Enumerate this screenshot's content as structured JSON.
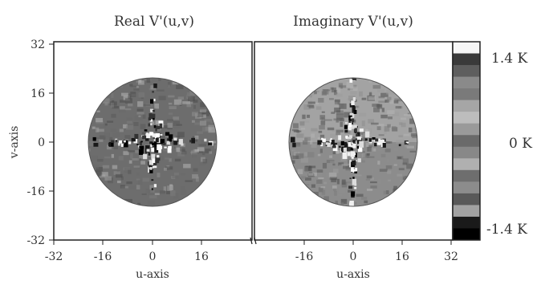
{
  "panels": [
    {
      "title": "Real V'(u,v)",
      "xlabel": "u-axis",
      "ylabel": "v-axis",
      "x_ticks": [
        "-32",
        "-16",
        "0",
        "16"
      ],
      "y_ticks": [
        "32",
        "16",
        "0",
        "-16",
        "-32"
      ]
    },
    {
      "title": "Imaginary V'(u,v)",
      "xlabel": "u-axis",
      "x_ticks": [
        "-16",
        "0",
        "16",
        "32"
      ]
    }
  ],
  "colorbar": {
    "labels": [
      "1.4 K",
      "0 K",
      "-1.4 K"
    ],
    "levels": [
      "#f6f6f6",
      "#3a3a3a",
      "#5e5e5e",
      "#8a8a8a",
      "#7a7a7a",
      "#a6a6a6",
      "#bdbdbd",
      "#9a9a9a",
      "#6a6a6a",
      "#888888",
      "#b0b0b0",
      "#6e6e6e",
      "#8c8c8c",
      "#595959",
      "#a2a2a2",
      "#1a1a1a",
      "#000000"
    ]
  },
  "colors": {
    "disk_real": "#6d6d6d",
    "disk_imag": "#8c8c8c",
    "disk_imag_upper": "#a3a3a3"
  }
}
